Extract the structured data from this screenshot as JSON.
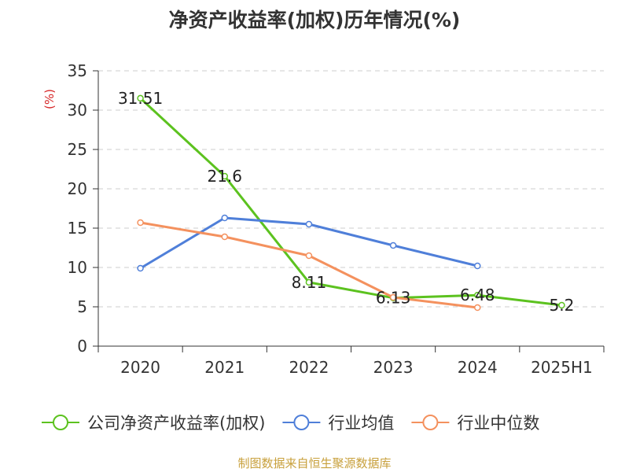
{
  "title": "净资产收益率(加权)历年情况(%)",
  "source": "制图数据来自恒生聚源数据库",
  "chart_data": {
    "type": "line",
    "title": "净资产收益率(加权)历年情况(%)",
    "ylabel": "(%)",
    "xlabel": "",
    "categories": [
      "2020",
      "2021",
      "2022",
      "2023",
      "2024",
      "2025H1"
    ],
    "ylim": [
      0,
      35
    ],
    "yticks": [
      0,
      5,
      10,
      15,
      20,
      25,
      30,
      35
    ],
    "grid": true,
    "legend_position": "bottom",
    "series": [
      {
        "name": "公司净资产收益率(加权)",
        "color": "#5cc21f",
        "values": [
          31.51,
          21.6,
          8.11,
          6.13,
          6.48,
          5.2
        ],
        "labels": [
          "31.51",
          "21.6",
          "8.11",
          "6.13",
          "6.48",
          "5.2"
        ]
      },
      {
        "name": "行业均值",
        "color": "#4f7fd9",
        "values": [
          9.9,
          16.3,
          15.5,
          12.8,
          10.2,
          null
        ]
      },
      {
        "name": "行业中位数",
        "color": "#f4915e",
        "values": [
          15.7,
          13.9,
          11.5,
          6.2,
          4.9,
          null
        ]
      }
    ]
  }
}
